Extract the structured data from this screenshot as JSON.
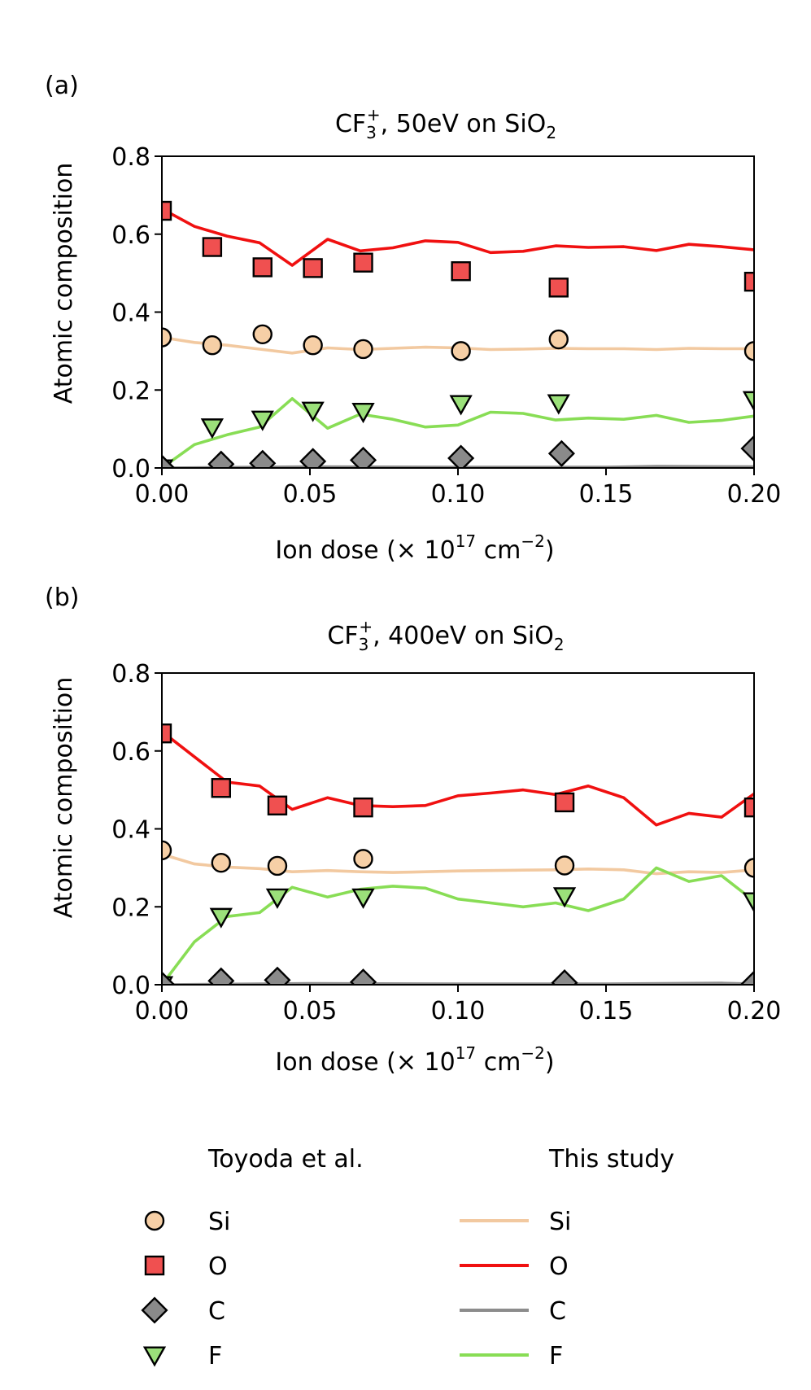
{
  "legend": {
    "exp_title": "Toyoda et al.",
    "sim_title": "This study",
    "entries": [
      {
        "label": "Si",
        "marker": "circle",
        "face": "#f6cfa6",
        "line": "#f2c9a0"
      },
      {
        "label": "O",
        "marker": "square",
        "face": "#f05050",
        "line": "#f01010"
      },
      {
        "label": "C",
        "marker": "diamond",
        "face": "#8a8a8a",
        "line": "#8c8c8c"
      },
      {
        "label": "F",
        "marker": "triangle-down",
        "face": "#9be07a",
        "line": "#88dd55"
      }
    ]
  },
  "chart_data": [
    {
      "panel": "(a)",
      "type": "line",
      "title_main": "CF",
      "title_sub": "3",
      "title_sup": "+",
      "title_rest": ", 50eV on SiO",
      "title_sub2": "2",
      "xlabel_main": "Ion dose (× 10",
      "xlabel_sup": "17",
      "xlabel_mid": " cm",
      "xlabel_sup2": "−2",
      "xlabel_end": ")",
      "ylabel": "Atomic composition",
      "xlim": [
        0,
        0.2
      ],
      "ylim": [
        0,
        0.8
      ],
      "xticks": [
        0.0,
        0.05,
        0.1,
        0.15,
        0.2
      ],
      "xtick_labels": [
        "0.00",
        "0.05",
        "0.10",
        "0.15",
        "0.20"
      ],
      "yticks": [
        0.0,
        0.2,
        0.4,
        0.6,
        0.8
      ],
      "ytick_labels": [
        "0.0",
        "0.2",
        "0.4",
        "0.6",
        "0.8"
      ],
      "experiment": [
        {
          "name": "Si",
          "x": [
            0.0,
            0.017,
            0.034,
            0.051,
            0.068,
            0.101,
            0.134,
            0.2
          ],
          "y": [
            0.335,
            0.315,
            0.343,
            0.315,
            0.305,
            0.3,
            0.33,
            0.3
          ]
        },
        {
          "name": "O",
          "x": [
            0.0,
            0.017,
            0.034,
            0.051,
            0.068,
            0.101,
            0.134,
            0.2
          ],
          "y": [
            0.66,
            0.567,
            0.515,
            0.513,
            0.527,
            0.505,
            0.463,
            0.478
          ]
        },
        {
          "name": "C",
          "x": [
            0.0,
            0.02,
            0.034,
            0.051,
            0.068,
            0.101,
            0.135,
            0.2
          ],
          "y": [
            0.0,
            0.01,
            0.012,
            0.017,
            0.02,
            0.025,
            0.037,
            0.05
          ]
        },
        {
          "name": "F",
          "x": [
            0.0,
            0.017,
            0.034,
            0.051,
            0.068,
            0.101,
            0.134,
            0.2
          ],
          "y": [
            0.0,
            0.105,
            0.125,
            0.148,
            0.145,
            0.165,
            0.167,
            0.175
          ]
        }
      ],
      "simulation": [
        {
          "name": "Si",
          "x": [
            0,
            0.011,
            0.022,
            0.033,
            0.044,
            0.056,
            0.067,
            0.078,
            0.089,
            0.1,
            0.111,
            0.122,
            0.133,
            0.144,
            0.156,
            0.167,
            0.178,
            0.189,
            0.2
          ],
          "y": [
            0.335,
            0.322,
            0.315,
            0.305,
            0.295,
            0.308,
            0.304,
            0.307,
            0.31,
            0.308,
            0.304,
            0.305,
            0.307,
            0.306,
            0.306,
            0.304,
            0.307,
            0.306,
            0.306
          ]
        },
        {
          "name": "O",
          "x": [
            0,
            0.011,
            0.022,
            0.033,
            0.044,
            0.056,
            0.067,
            0.078,
            0.089,
            0.1,
            0.111,
            0.122,
            0.133,
            0.144,
            0.156,
            0.167,
            0.178,
            0.189,
            0.2
          ],
          "y": [
            0.665,
            0.62,
            0.595,
            0.578,
            0.52,
            0.587,
            0.557,
            0.565,
            0.583,
            0.579,
            0.553,
            0.556,
            0.57,
            0.566,
            0.568,
            0.558,
            0.574,
            0.568,
            0.56
          ]
        },
        {
          "name": "C",
          "x": [
            0,
            0.05,
            0.1,
            0.15,
            0.167,
            0.2
          ],
          "y": [
            0.0,
            0.003,
            0.002,
            0.002,
            0.004,
            0.003
          ]
        },
        {
          "name": "F",
          "x": [
            0,
            0.011,
            0.022,
            0.033,
            0.044,
            0.056,
            0.067,
            0.078,
            0.089,
            0.1,
            0.111,
            0.122,
            0.133,
            0.144,
            0.156,
            0.167,
            0.178,
            0.189,
            0.2
          ],
          "y": [
            0.0,
            0.06,
            0.085,
            0.105,
            0.178,
            0.102,
            0.138,
            0.125,
            0.105,
            0.11,
            0.143,
            0.14,
            0.123,
            0.128,
            0.125,
            0.135,
            0.117,
            0.122,
            0.133
          ]
        }
      ]
    },
    {
      "panel": "(b)",
      "type": "line",
      "title_main": "CF",
      "title_sub": "3",
      "title_sup": "+",
      "title_rest": ", 400eV on SiO",
      "title_sub2": "2",
      "xlabel_main": "Ion dose (× 10",
      "xlabel_sup": "17",
      "xlabel_mid": " cm",
      "xlabel_sup2": "−2",
      "xlabel_end": ")",
      "ylabel": "Atomic composition",
      "xlim": [
        0,
        0.2
      ],
      "ylim": [
        0,
        0.8
      ],
      "xticks": [
        0.0,
        0.05,
        0.1,
        0.15,
        0.2
      ],
      "xtick_labels": [
        "0.00",
        "0.05",
        "0.10",
        "0.15",
        "0.20"
      ],
      "yticks": [
        0.0,
        0.2,
        0.4,
        0.6,
        0.8
      ],
      "ytick_labels": [
        "0.0",
        "0.2",
        "0.4",
        "0.6",
        "0.8"
      ],
      "experiment": [
        {
          "name": "Si",
          "x": [
            0.0,
            0.02,
            0.039,
            0.068,
            0.136,
            0.2
          ],
          "y": [
            0.345,
            0.313,
            0.305,
            0.323,
            0.306,
            0.3
          ]
        },
        {
          "name": "O",
          "x": [
            0.0,
            0.02,
            0.039,
            0.068,
            0.136,
            0.2
          ],
          "y": [
            0.645,
            0.505,
            0.46,
            0.455,
            0.468,
            0.455
          ]
        },
        {
          "name": "C",
          "x": [
            0.0,
            0.02,
            0.039,
            0.068,
            0.136,
            0.2
          ],
          "y": [
            0.0,
            0.01,
            0.012,
            0.007,
            0.005,
            0.002
          ]
        },
        {
          "name": "F",
          "x": [
            0.0,
            0.02,
            0.039,
            0.068,
            0.136,
            0.2
          ],
          "y": [
            0.0,
            0.175,
            0.225,
            0.225,
            0.228,
            0.215
          ]
        }
      ],
      "simulation": [
        {
          "name": "Si",
          "x": [
            0,
            0.011,
            0.022,
            0.033,
            0.044,
            0.056,
            0.067,
            0.078,
            0.089,
            0.1,
            0.111,
            0.122,
            0.133,
            0.144,
            0.156,
            0.167,
            0.178,
            0.189,
            0.2
          ],
          "y": [
            0.335,
            0.31,
            0.302,
            0.298,
            0.29,
            0.293,
            0.29,
            0.288,
            0.29,
            0.292,
            0.293,
            0.294,
            0.295,
            0.297,
            0.295,
            0.285,
            0.29,
            0.288,
            0.295
          ]
        },
        {
          "name": "O",
          "x": [
            0,
            0.011,
            0.022,
            0.033,
            0.044,
            0.056,
            0.067,
            0.078,
            0.089,
            0.1,
            0.111,
            0.122,
            0.133,
            0.144,
            0.156,
            0.167,
            0.178,
            0.189,
            0.2
          ],
          "y": [
            0.65,
            0.585,
            0.52,
            0.51,
            0.45,
            0.48,
            0.46,
            0.457,
            0.46,
            0.485,
            0.492,
            0.5,
            0.488,
            0.51,
            0.48,
            0.41,
            0.44,
            0.43,
            0.49
          ]
        },
        {
          "name": "C",
          "x": [
            0,
            0.05,
            0.1,
            0.15,
            0.189,
            0.2
          ],
          "y": [
            0.0,
            0.003,
            0.002,
            0.002,
            0.004,
            0.002
          ]
        },
        {
          "name": "F",
          "x": [
            0,
            0.011,
            0.022,
            0.033,
            0.044,
            0.056,
            0.067,
            0.078,
            0.089,
            0.1,
            0.111,
            0.122,
            0.133,
            0.144,
            0.156,
            0.167,
            0.178,
            0.189,
            0.2
          ],
          "y": [
            0.0,
            0.11,
            0.175,
            0.185,
            0.25,
            0.225,
            0.245,
            0.253,
            0.248,
            0.22,
            0.21,
            0.2,
            0.21,
            0.19,
            0.22,
            0.3,
            0.265,
            0.28,
            0.215
          ]
        }
      ]
    }
  ]
}
